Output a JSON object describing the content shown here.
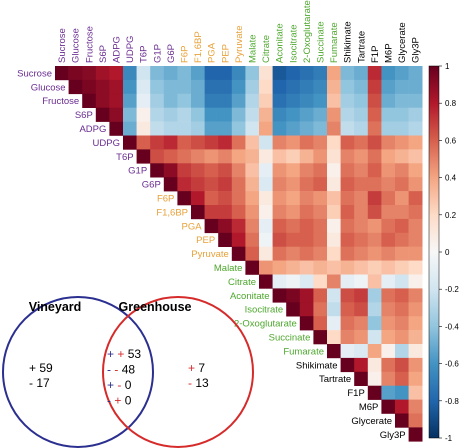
{
  "chart_data": [
    {
      "type": "heatmap",
      "title": "",
      "layout": "upper-triangle",
      "variables": [
        {
          "name": "Sucrose",
          "group": "sugar"
        },
        {
          "name": "Glucose",
          "group": "sugar"
        },
        {
          "name": "Fructose",
          "group": "sugar"
        },
        {
          "name": "S6P",
          "group": "sugar"
        },
        {
          "name": "ADPG",
          "group": "sugar"
        },
        {
          "name": "UDPG",
          "group": "sugar"
        },
        {
          "name": "T6P",
          "group": "sugar"
        },
        {
          "name": "G1P",
          "group": "sugar"
        },
        {
          "name": "G6P",
          "group": "sugar"
        },
        {
          "name": "F6P",
          "group": "glycolysis"
        },
        {
          "name": "F1,6BP",
          "group": "glycolysis"
        },
        {
          "name": "PGA",
          "group": "glycolysis"
        },
        {
          "name": "PEP",
          "group": "glycolysis"
        },
        {
          "name": "Pyruvate",
          "group": "glycolysis"
        },
        {
          "name": "Malate",
          "group": "tca"
        },
        {
          "name": "Citrate",
          "group": "tca"
        },
        {
          "name": "Aconitate",
          "group": "tca"
        },
        {
          "name": "Isocitrate",
          "group": "tca"
        },
        {
          "name": "2-Oxoglutarate",
          "group": "tca"
        },
        {
          "name": "Succinate",
          "group": "tca"
        },
        {
          "name": "Fumarate",
          "group": "tca"
        },
        {
          "name": "Shikimate",
          "group": "other"
        },
        {
          "name": "Tartrate",
          "group": "other"
        },
        {
          "name": "F1P",
          "group": "other"
        },
        {
          "name": "M6P",
          "group": "other"
        },
        {
          "name": "Glycerate",
          "group": "other"
        },
        {
          "name": "Gly3P",
          "group": "other"
        }
      ],
      "group_colors": {
        "sugar": "#6a2c91",
        "glycolysis": "#e8a13a",
        "tca": "#4ea72e",
        "other": "#000000"
      },
      "colorbar": {
        "range": [
          -1,
          1
        ],
        "ticks": [
          1,
          0.8,
          0.6,
          0.4,
          0.2,
          0,
          -0.2,
          -0.4,
          -0.6,
          -0.8,
          -1
        ],
        "tick_labels": [
          "1",
          "0.8",
          "0.6",
          "0.4",
          "0.2",
          "0",
          "-0.2",
          "-0.4",
          "-0.6",
          "-0.8",
          "-1"
        ],
        "colors": [
          "#053061",
          "#2166ac",
          "#4393c3",
          "#92c5de",
          "#d1e5f0",
          "#f7f7f7",
          "#fddbc7",
          "#f4a582",
          "#d6604d",
          "#b2182b",
          "#67001f"
        ]
      },
      "values": [
        [
          1,
          0.95,
          0.92,
          0.85,
          0.8,
          -0.65,
          -0.2,
          -0.45,
          -0.5,
          -0.45,
          -0.55,
          -0.8,
          -0.8,
          -0.65,
          -0.4,
          0.15,
          -0.85,
          -0.8,
          -0.75,
          -0.7,
          0.4,
          -0.45,
          -0.5,
          0.75,
          -0.6,
          -0.55,
          -0.5
        ],
        [
          null,
          1,
          0.95,
          0.9,
          0.85,
          -0.6,
          -0.15,
          -0.4,
          -0.45,
          -0.45,
          -0.5,
          -0.75,
          -0.75,
          -0.6,
          -0.35,
          0.2,
          -0.8,
          -0.75,
          -0.7,
          -0.65,
          0.35,
          -0.4,
          -0.45,
          0.7,
          -0.55,
          -0.5,
          -0.5
        ],
        [
          null,
          null,
          1,
          0.9,
          0.85,
          -0.55,
          -0.1,
          -0.35,
          -0.45,
          -0.4,
          -0.5,
          -0.7,
          -0.7,
          -0.55,
          -0.3,
          0.25,
          -0.75,
          -0.7,
          -0.65,
          -0.6,
          0.3,
          -0.35,
          -0.4,
          0.65,
          -0.5,
          -0.45,
          -0.45
        ],
        [
          null,
          null,
          null,
          1,
          0.9,
          -0.45,
          0.05,
          -0.3,
          -0.35,
          -0.3,
          -0.4,
          -0.6,
          -0.6,
          -0.45,
          -0.25,
          0.35,
          -0.65,
          -0.6,
          -0.55,
          -0.5,
          0.45,
          -0.3,
          -0.35,
          0.6,
          -0.4,
          -0.4,
          -0.35
        ],
        [
          null,
          null,
          null,
          null,
          1,
          -0.5,
          0.1,
          -0.25,
          -0.3,
          -0.3,
          -0.35,
          -0.55,
          -0.55,
          -0.4,
          -0.2,
          0.4,
          -0.6,
          -0.55,
          -0.5,
          -0.45,
          0.5,
          -0.25,
          -0.3,
          0.55,
          -0.35,
          -0.35,
          -0.3
        ],
        [
          null,
          null,
          null,
          null,
          null,
          1,
          0.6,
          0.7,
          0.75,
          0.6,
          0.65,
          0.7,
          0.75,
          0.55,
          0.3,
          -0.2,
          0.5,
          0.45,
          0.55,
          0.5,
          0.2,
          0.6,
          0.55,
          0.65,
          0.5,
          0.45,
          0.4
        ],
        [
          null,
          null,
          null,
          null,
          null,
          null,
          1,
          0.65,
          0.6,
          0.55,
          0.5,
          0.45,
          0.5,
          0.4,
          0.35,
          0.1,
          0.3,
          0.25,
          0.35,
          0.45,
          0.15,
          0.5,
          0.45,
          0.55,
          0.4,
          0.35,
          0.3
        ],
        [
          null,
          null,
          null,
          null,
          null,
          null,
          null,
          1,
          0.9,
          0.7,
          0.65,
          0.6,
          0.65,
          0.5,
          0.3,
          -0.1,
          0.45,
          0.4,
          0.5,
          0.55,
          0.05,
          0.55,
          0.5,
          0.6,
          0.45,
          0.5,
          0.4
        ],
        [
          null,
          null,
          null,
          null,
          null,
          null,
          null,
          null,
          1,
          0.75,
          0.7,
          0.65,
          0.7,
          0.55,
          0.35,
          -0.15,
          0.5,
          0.45,
          0.55,
          0.6,
          0.1,
          0.6,
          0.55,
          0.55,
          0.5,
          0.55,
          0.45
        ],
        [
          null,
          null,
          null,
          null,
          null,
          null,
          null,
          null,
          null,
          1,
          0.8,
          0.6,
          0.65,
          0.55,
          0.4,
          0.1,
          0.45,
          0.4,
          0.5,
          0.45,
          0.3,
          0.55,
          0.5,
          0.7,
          0.55,
          0.45,
          0.6
        ],
        [
          null,
          null,
          null,
          null,
          null,
          null,
          null,
          null,
          null,
          null,
          1,
          0.7,
          0.7,
          0.6,
          0.45,
          0.05,
          0.5,
          0.45,
          0.55,
          0.5,
          0.25,
          0.6,
          0.5,
          0.65,
          0.5,
          0.5,
          0.55
        ],
        [
          null,
          null,
          null,
          null,
          null,
          null,
          null,
          null,
          null,
          null,
          null,
          1,
          0.9,
          0.75,
          0.5,
          -0.1,
          0.6,
          0.55,
          0.6,
          0.55,
          0.05,
          0.55,
          0.5,
          0.45,
          0.55,
          0.6,
          0.5
        ],
        [
          null,
          null,
          null,
          null,
          null,
          null,
          null,
          null,
          null,
          null,
          null,
          null,
          1,
          0.8,
          0.55,
          -0.05,
          0.65,
          0.6,
          0.6,
          0.55,
          0.1,
          0.6,
          0.55,
          0.5,
          0.6,
          0.55,
          0.5
        ],
        [
          null,
          null,
          null,
          null,
          null,
          null,
          null,
          null,
          null,
          null,
          null,
          null,
          null,
          1,
          0.6,
          0.1,
          0.55,
          0.5,
          0.55,
          0.5,
          0.2,
          0.55,
          0.5,
          0.45,
          0.5,
          0.45,
          0.45
        ],
        [
          null,
          null,
          null,
          null,
          null,
          null,
          null,
          null,
          null,
          null,
          null,
          null,
          null,
          null,
          1,
          0.45,
          0.4,
          0.35,
          0.3,
          0.35,
          0.3,
          0.35,
          0.3,
          0.25,
          0.3,
          0.25,
          0.2
        ],
        [
          null,
          null,
          null,
          null,
          null,
          null,
          null,
          null,
          null,
          null,
          null,
          null,
          null,
          null,
          null,
          1,
          -0.1,
          -0.05,
          -0.15,
          0.2,
          0.5,
          -0.1,
          -0.05,
          0.3,
          -0.1,
          -0.2,
          0.05
        ],
        [
          null,
          null,
          null,
          null,
          null,
          null,
          null,
          null,
          null,
          null,
          null,
          null,
          null,
          null,
          null,
          null,
          1,
          0.95,
          0.85,
          0.6,
          -0.2,
          0.65,
          0.7,
          -0.35,
          0.55,
          0.6,
          0.5
        ],
        [
          null,
          null,
          null,
          null,
          null,
          null,
          null,
          null,
          null,
          null,
          null,
          null,
          null,
          null,
          null,
          null,
          null,
          1,
          0.85,
          0.55,
          -0.25,
          0.6,
          0.65,
          -0.3,
          0.5,
          0.55,
          0.45
        ],
        [
          null,
          null,
          null,
          null,
          null,
          null,
          null,
          null,
          null,
          null,
          null,
          null,
          null,
          null,
          null,
          null,
          null,
          null,
          1,
          0.6,
          -0.1,
          0.55,
          0.5,
          -0.4,
          0.45,
          0.5,
          0.4
        ],
        [
          null,
          null,
          null,
          null,
          null,
          null,
          null,
          null,
          null,
          null,
          null,
          null,
          null,
          null,
          null,
          null,
          null,
          null,
          null,
          1,
          0.2,
          0.5,
          0.45,
          -0.2,
          0.4,
          0.45,
          0.35
        ],
        [
          null,
          null,
          null,
          null,
          null,
          null,
          null,
          null,
          null,
          null,
          null,
          null,
          null,
          null,
          null,
          null,
          null,
          null,
          null,
          null,
          1,
          -0.1,
          -0.15,
          0.4,
          0.05,
          -0.3,
          0.1
        ],
        [
          null,
          null,
          null,
          null,
          null,
          null,
          null,
          null,
          null,
          null,
          null,
          null,
          null,
          null,
          null,
          null,
          null,
          null,
          null,
          null,
          null,
          1,
          0.8,
          0.1,
          0.55,
          0.65,
          0.45
        ],
        [
          null,
          null,
          null,
          null,
          null,
          null,
          null,
          null,
          null,
          null,
          null,
          null,
          null,
          null,
          null,
          null,
          null,
          null,
          null,
          null,
          null,
          null,
          1,
          0.05,
          0.5,
          0.6,
          0.4
        ],
        [
          null,
          null,
          null,
          null,
          null,
          null,
          null,
          null,
          null,
          null,
          null,
          null,
          null,
          null,
          null,
          null,
          null,
          null,
          null,
          null,
          null,
          null,
          null,
          1,
          -0.55,
          -0.6,
          0.3
        ],
        [
          null,
          null,
          null,
          null,
          null,
          null,
          null,
          null,
          null,
          null,
          null,
          null,
          null,
          null,
          null,
          null,
          null,
          null,
          null,
          null,
          null,
          null,
          null,
          null,
          1,
          0.8,
          0.5
        ],
        [
          null,
          null,
          null,
          null,
          null,
          null,
          null,
          null,
          null,
          null,
          null,
          null,
          null,
          null,
          null,
          null,
          null,
          null,
          null,
          null,
          null,
          null,
          null,
          null,
          null,
          1,
          0.55
        ],
        [
          null,
          null,
          null,
          null,
          null,
          null,
          null,
          null,
          null,
          null,
          null,
          null,
          null,
          null,
          null,
          null,
          null,
          null,
          null,
          null,
          null,
          null,
          null,
          null,
          null,
          null,
          1
        ]
      ]
    },
    {
      "type": "venn",
      "sets": [
        {
          "name": "Vineyard",
          "color": "#2b2f8f"
        },
        {
          "name": "Greenhouse",
          "color": "#d62b2b"
        }
      ],
      "regions": {
        "vineyard_only": [
          {
            "signs": [
              "+"
            ],
            "sign_colors": [
              "#000000"
            ],
            "value": "59"
          },
          {
            "signs": [
              "-"
            ],
            "sign_colors": [
              "#000000"
            ],
            "value": "17"
          }
        ],
        "both": [
          {
            "signs": [
              "+",
              "+"
            ],
            "sign_colors": [
              "#2b2f8f",
              "#d62b2b"
            ],
            "value": "53"
          },
          {
            "signs": [
              "-",
              "-"
            ],
            "sign_colors": [
              "#2b2f8f",
              "#d62b2b"
            ],
            "value": "48"
          },
          {
            "signs": [
              "+",
              "-"
            ],
            "sign_colors": [
              "#2b2f8f",
              "#d62b2b"
            ],
            "value": "0"
          },
          {
            "signs": [
              "-",
              "+"
            ],
            "sign_colors": [
              "#2b2f8f",
              "#d62b2b"
            ],
            "value": "0"
          }
        ],
        "greenhouse_only": [
          {
            "signs": [
              "+"
            ],
            "sign_colors": [
              "#d62b2b"
            ],
            "value": "7"
          },
          {
            "signs": [
              "-"
            ],
            "sign_colors": [
              "#d62b2b"
            ],
            "value": "13"
          }
        ]
      }
    }
  ]
}
